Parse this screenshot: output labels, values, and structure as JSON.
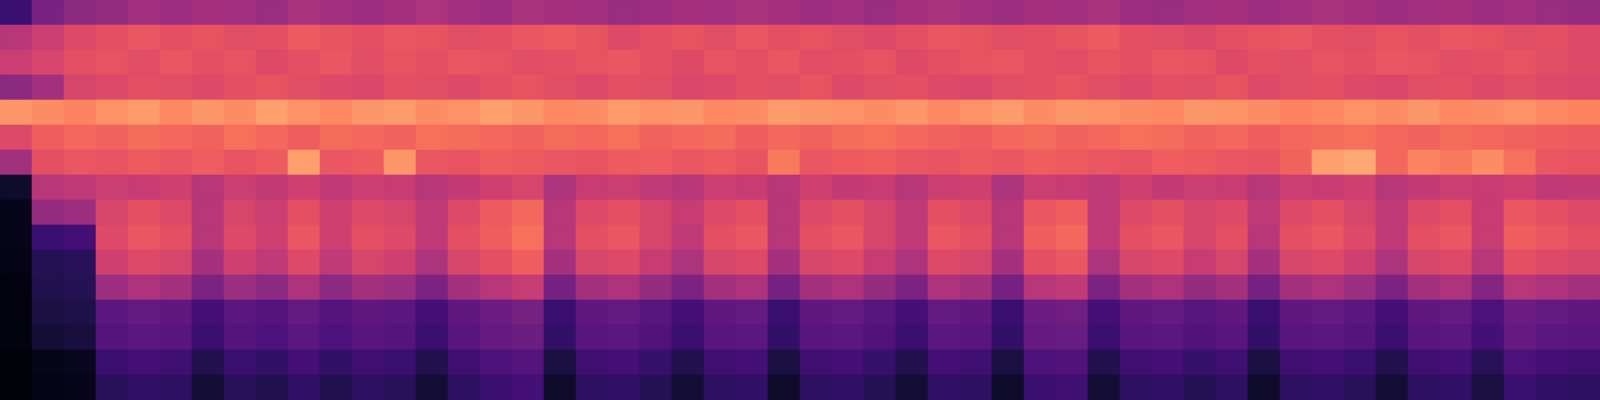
{
  "chart_data": {
    "type": "heatmap",
    "color": "magma",
    "zlim": [
      0,
      100
    ],
    "tick_labels": false,
    "cells": [
      [
        20,
        35,
        40,
        42,
        45,
        44,
        46,
        45,
        43,
        47,
        45,
        44,
        46,
        48,
        45,
        44,
        47,
        46,
        45,
        43,
        44,
        46,
        45,
        47,
        46,
        44,
        45,
        43,
        46,
        47,
        45,
        44,
        46,
        45,
        47,
        44,
        43,
        45,
        46,
        44,
        45,
        47,
        46,
        44,
        45,
        46,
        44,
        45,
        43,
        42
      ],
      [
        50,
        55,
        60,
        62,
        64,
        62,
        63,
        61,
        62,
        65,
        63,
        62,
        64,
        63,
        61,
        62,
        64,
        65,
        63,
        60,
        62,
        63,
        61,
        64,
        62,
        63,
        61,
        60,
        62,
        64,
        63,
        61,
        62,
        63,
        65,
        62,
        61,
        60,
        62,
        63,
        64,
        62,
        61,
        63,
        62,
        64,
        63,
        61,
        62,
        60
      ],
      [
        55,
        58,
        62,
        63,
        61,
        64,
        62,
        63,
        60,
        62,
        64,
        61,
        63,
        62,
        64,
        63,
        61,
        62,
        63,
        64,
        62,
        60,
        63,
        62,
        64,
        61,
        62,
        63,
        60,
        62,
        63,
        64,
        62,
        61,
        63,
        62,
        64,
        63,
        60,
        62,
        61,
        63,
        62,
        64,
        63,
        61,
        62,
        63,
        61,
        60
      ],
      [
        40,
        45,
        58,
        60,
        62,
        61,
        60,
        62,
        63,
        61,
        60,
        59,
        62,
        61,
        60,
        62,
        63,
        61,
        60,
        62,
        61,
        59,
        60,
        62,
        61,
        63,
        60,
        61,
        62,
        60,
        59,
        61,
        62,
        63,
        61,
        60,
        62,
        61,
        63,
        60,
        61,
        62,
        60,
        59,
        61,
        62,
        60,
        61,
        60,
        59
      ],
      [
        78,
        76,
        74,
        77,
        79,
        75,
        78,
        76,
        80,
        77,
        75,
        78,
        79,
        76,
        77,
        80,
        78,
        75,
        76,
        79,
        77,
        78,
        75,
        76,
        79,
        78,
        77,
        76,
        78,
        75,
        77,
        79,
        76,
        78,
        77,
        76,
        75,
        78,
        77,
        76,
        74,
        75,
        77,
        76,
        78,
        75,
        76,
        77,
        75,
        74
      ],
      [
        60,
        66,
        68,
        67,
        69,
        68,
        67,
        70,
        68,
        66,
        69,
        68,
        67,
        70,
        69,
        68,
        67,
        69,
        68,
        70,
        67,
        68,
        69,
        66,
        68,
        67,
        69,
        70,
        68,
        67,
        66,
        68,
        69,
        67,
        68,
        70,
        69,
        67,
        68,
        66,
        68,
        69,
        70,
        68,
        67,
        69,
        68,
        67,
        66,
        65
      ],
      [
        45,
        62,
        64,
        63,
        65,
        64,
        66,
        63,
        65,
        80,
        64,
        65,
        78,
        64,
        63,
        66,
        65,
        64,
        63,
        65,
        66,
        64,
        65,
        63,
        72,
        64,
        65,
        66,
        64,
        63,
        65,
        64,
        66,
        65,
        64,
        63,
        66,
        65,
        64,
        63,
        67,
        80,
        82,
        68,
        74,
        72,
        76,
        70,
        64,
        63
      ],
      [
        8,
        50,
        52,
        55,
        54,
        56,
        50,
        55,
        53,
        56,
        52,
        55,
        54,
        50,
        53,
        56,
        58,
        48,
        54,
        55,
        52,
        50,
        55,
        54,
        50,
        56,
        53,
        54,
        50,
        55,
        56,
        48,
        55,
        54,
        52,
        56,
        53,
        55,
        54,
        50,
        55,
        54,
        56,
        50,
        53,
        55,
        54,
        56,
        52,
        53
      ],
      [
        5,
        42,
        44,
        58,
        62,
        60,
        50,
        58,
        55,
        62,
        56,
        60,
        58,
        52,
        60,
        65,
        68,
        50,
        60,
        62,
        58,
        54,
        60,
        62,
        50,
        60,
        62,
        58,
        52,
        62,
        60,
        50,
        64,
        66,
        52,
        60,
        62,
        58,
        60,
        52,
        60,
        62,
        58,
        52,
        60,
        62,
        54,
        64,
        62,
        60
      ],
      [
        5,
        20,
        22,
        60,
        64,
        62,
        50,
        60,
        56,
        64,
        56,
        62,
        60,
        52,
        62,
        66,
        70,
        50,
        62,
        64,
        58,
        52,
        62,
        64,
        50,
        62,
        64,
        58,
        52,
        64,
        62,
        50,
        66,
        68,
        52,
        62,
        64,
        58,
        62,
        50,
        62,
        64,
        60,
        52,
        62,
        64,
        54,
        66,
        64,
        62
      ],
      [
        4,
        15,
        16,
        56,
        60,
        58,
        46,
        56,
        52,
        60,
        52,
        58,
        56,
        48,
        58,
        62,
        66,
        46,
        58,
        60,
        54,
        48,
        58,
        60,
        46,
        58,
        60,
        54,
        48,
        60,
        58,
        46,
        62,
        64,
        48,
        58,
        60,
        54,
        58,
        46,
        58,
        60,
        56,
        48,
        58,
        60,
        50,
        62,
        60,
        58
      ],
      [
        3,
        14,
        15,
        44,
        48,
        46,
        36,
        44,
        40,
        48,
        40,
        46,
        44,
        36,
        46,
        50,
        54,
        34,
        46,
        48,
        42,
        36,
        46,
        48,
        34,
        46,
        48,
        42,
        36,
        48,
        46,
        34,
        50,
        52,
        36,
        46,
        48,
        42,
        46,
        34,
        46,
        48,
        44,
        36,
        46,
        48,
        38,
        50,
        48,
        46
      ],
      [
        3,
        12,
        13,
        28,
        30,
        29,
        22,
        28,
        26,
        30,
        26,
        29,
        28,
        22,
        29,
        32,
        34,
        20,
        29,
        30,
        27,
        22,
        29,
        30,
        20,
        29,
        30,
        27,
        22,
        30,
        29,
        20,
        32,
        33,
        22,
        29,
        30,
        27,
        29,
        20,
        29,
        30,
        28,
        22,
        29,
        30,
        24,
        32,
        30,
        29
      ],
      [
        3,
        10,
        11,
        26,
        28,
        27,
        20,
        26,
        24,
        28,
        24,
        27,
        26,
        20,
        27,
        30,
        32,
        18,
        27,
        28,
        25,
        20,
        27,
        28,
        18,
        27,
        28,
        25,
        20,
        28,
        27,
        18,
        30,
        31,
        20,
        27,
        28,
        25,
        27,
        18,
        27,
        28,
        26,
        20,
        27,
        28,
        22,
        30,
        28,
        27
      ],
      [
        2,
        5,
        6,
        20,
        22,
        21,
        14,
        20,
        18,
        22,
        18,
        21,
        20,
        14,
        21,
        24,
        26,
        12,
        21,
        22,
        19,
        14,
        21,
        22,
        12,
        21,
        22,
        19,
        14,
        22,
        21,
        12,
        24,
        25,
        14,
        21,
        22,
        19,
        21,
        12,
        21,
        22,
        20,
        14,
        21,
        22,
        16,
        24,
        22,
        21
      ],
      [
        2,
        4,
        5,
        16,
        18,
        17,
        10,
        16,
        14,
        18,
        14,
        17,
        16,
        10,
        17,
        20,
        22,
        8,
        17,
        18,
        15,
        10,
        17,
        18,
        8,
        17,
        18,
        15,
        10,
        18,
        17,
        8,
        20,
        21,
        10,
        17,
        18,
        15,
        17,
        8,
        17,
        18,
        16,
        10,
        17,
        18,
        12,
        20,
        18,
        17
      ]
    ]
  }
}
